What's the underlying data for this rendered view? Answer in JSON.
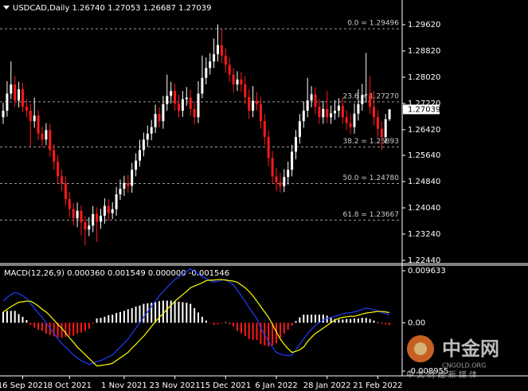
{
  "chart_data": [
    {
      "type": "candlestick",
      "title": "USDCAD,Daily  1.26740 1.27053 1.26687 1.27039",
      "categories": [
        null,
        null,
        null,
        null,
        null,
        "16 Sep 2021",
        null,
        null,
        null,
        null,
        null,
        null,
        null,
        null,
        null,
        null,
        null,
        "8 Oct 2021",
        null,
        null,
        null,
        null,
        null,
        null,
        null,
        null,
        null,
        null,
        null,
        null,
        null,
        "1 Nov 2021",
        null,
        null,
        null,
        null,
        null,
        null,
        null,
        null,
        null,
        null,
        null,
        null,
        "23 Nov 2021",
        null,
        null,
        null,
        null,
        null,
        null,
        null,
        null,
        null,
        null,
        null,
        null,
        "15 Dec 2021",
        null,
        null,
        null,
        null,
        null,
        null,
        null,
        null,
        null,
        null,
        null,
        null,
        "6 Jan 2022",
        null,
        null,
        null,
        null,
        null,
        null,
        null,
        null,
        null,
        null,
        null,
        null,
        "28 Jan 2022",
        null,
        null,
        null,
        null,
        null,
        null,
        null,
        null,
        null,
        null,
        null,
        null,
        "21 Feb 2022",
        null,
        null,
        null
      ],
      "open": [
        1.268,
        1.27,
        1.2752,
        1.278,
        1.2731,
        1.2765,
        1.2712,
        1.27,
        1.2668,
        1.2685,
        1.263,
        1.2612,
        1.2641,
        1.258,
        1.2545,
        1.25,
        1.2478,
        1.2431,
        1.24,
        1.2372,
        1.2395,
        1.236,
        1.2338,
        1.235,
        1.2385,
        1.2362,
        1.238,
        1.241,
        1.2388,
        1.24,
        1.2445,
        1.2462,
        1.248,
        1.2471,
        1.252,
        1.2548,
        1.258,
        1.2612,
        1.263,
        1.265,
        1.269,
        1.2668,
        1.272,
        1.2745,
        1.276,
        1.2722,
        1.27,
        1.2735,
        1.274,
        1.2705,
        1.268,
        1.2752,
        1.28,
        1.283,
        1.285,
        1.2872,
        1.29,
        1.2868,
        1.284,
        1.281,
        1.278,
        1.2795,
        1.278,
        1.2741,
        1.27,
        1.273,
        1.272,
        1.2668,
        1.262,
        1.2556,
        1.25,
        1.2482,
        1.247,
        1.2498,
        1.252,
        1.2575,
        1.262,
        1.2668,
        1.27,
        1.2731,
        1.275,
        1.2712,
        1.268,
        1.2705,
        1.268,
        1.2692,
        1.27,
        1.2715,
        1.268,
        1.2662,
        1.265,
        1.2691,
        1.272,
        1.2748,
        1.275,
        1.2712,
        1.268,
        1.2645,
        1.262,
        1.2674
      ],
      "high": [
        1.2724,
        1.279,
        1.285,
        1.2806,
        1.2788,
        1.2785,
        1.2736,
        1.2721,
        1.274,
        1.2702,
        1.2651,
        1.2662,
        1.266,
        1.2598,
        1.2566,
        1.2521,
        1.25,
        1.2452,
        1.2418,
        1.242,
        1.2411,
        1.238,
        1.2376,
        1.241,
        1.2405,
        1.2401,
        1.2433,
        1.243,
        1.2421,
        1.2468,
        1.249,
        1.2502,
        1.2505,
        1.2541,
        1.257,
        1.2611,
        1.2633,
        1.2655,
        1.2672,
        1.2718,
        1.2711,
        1.2745,
        1.281,
        1.2788,
        1.2782,
        1.2748,
        1.276,
        1.2772,
        1.2763,
        1.2728,
        1.279,
        1.2868,
        1.2862,
        1.2875,
        1.292,
        1.2963,
        1.295,
        1.289,
        1.2862,
        1.283,
        1.282,
        1.2818,
        1.2805,
        1.2765,
        1.2775,
        1.2756,
        1.2742,
        1.269,
        1.2641,
        1.2578,
        1.2525,
        1.251,
        1.2522,
        1.2545,
        1.2596,
        1.2641,
        1.269,
        1.2728,
        1.28,
        1.2775,
        1.2772,
        1.2735,
        1.273,
        1.276,
        1.2716,
        1.2732,
        1.2738,
        1.274,
        1.2702,
        1.269,
        1.2722,
        1.2765,
        1.2782,
        1.2876,
        1.2805,
        1.276,
        1.2702,
        1.2668,
        1.269,
        1.27053
      ],
      "low": [
        1.266,
        1.2682,
        1.2735,
        1.2712,
        1.271,
        1.2695,
        1.268,
        1.259,
        1.2648,
        1.261,
        1.259,
        1.2595,
        1.256,
        1.252,
        1.2478,
        1.2455,
        1.241,
        1.2375,
        1.235,
        1.2345,
        1.232,
        1.229,
        1.2318,
        1.233,
        1.23,
        1.234,
        1.2356,
        1.2365,
        1.237,
        1.238,
        1.2428,
        1.244,
        1.245,
        1.245,
        1.25,
        1.253,
        1.2561,
        1.259,
        1.261,
        1.2632,
        1.2648,
        1.2645,
        1.27,
        1.2722,
        1.27,
        1.268,
        1.2681,
        1.2715,
        1.2685,
        1.2658,
        1.2662,
        1.2738,
        1.278,
        1.281,
        1.283,
        1.285,
        1.2845,
        1.2815,
        1.2788,
        1.2755,
        1.276,
        1.2758,
        1.272,
        1.2675,
        1.268,
        1.27,
        1.2645,
        1.2595,
        1.253,
        1.2478,
        1.2455,
        1.245,
        1.2452,
        1.2475,
        1.25,
        1.2552,
        1.26,
        1.2648,
        1.268,
        1.271,
        1.269,
        1.266,
        1.266,
        1.2662,
        1.266,
        1.2672,
        1.268,
        1.266,
        1.264,
        1.2628,
        1.263,
        1.267,
        1.27,
        1.2725,
        1.269,
        1.2655,
        1.262,
        1.258,
        1.26,
        1.26687
      ],
      "close": [
        1.27,
        1.2752,
        1.278,
        1.2731,
        1.2765,
        1.2712,
        1.27,
        1.2668,
        1.2685,
        1.263,
        1.2612,
        1.2641,
        1.258,
        1.2545,
        1.25,
        1.2478,
        1.2431,
        1.24,
        1.2372,
        1.2395,
        1.236,
        1.2338,
        1.235,
        1.2385,
        1.2362,
        1.238,
        1.241,
        1.2388,
        1.24,
        1.2445,
        1.2462,
        1.248,
        1.2471,
        1.252,
        1.2548,
        1.258,
        1.2612,
        1.263,
        1.265,
        1.269,
        1.2668,
        1.272,
        1.2745,
        1.276,
        1.2722,
        1.27,
        1.2735,
        1.274,
        1.2705,
        1.268,
        1.2752,
        1.28,
        1.283,
        1.285,
        1.2872,
        1.29,
        1.2868,
        1.284,
        1.281,
        1.278,
        1.2795,
        1.278,
        1.2741,
        1.27,
        1.273,
        1.272,
        1.2668,
        1.262,
        1.2556,
        1.25,
        1.2482,
        1.247,
        1.2498,
        1.252,
        1.2575,
        1.262,
        1.2668,
        1.27,
        1.2731,
        1.275,
        1.2712,
        1.268,
        1.2705,
        1.268,
        1.2692,
        1.27,
        1.2715,
        1.268,
        1.2662,
        1.265,
        1.2691,
        1.272,
        1.2748,
        1.275,
        1.2712,
        1.268,
        1.2645,
        1.262,
        1.2674,
        1.27039
      ],
      "bull_color": "#ffffff",
      "bear_color": "#ff1a1a",
      "ylim": [
        1.22366,
        1.30372
      ],
      "yticks": [
        {
          "value": 1.2962,
          "label": "1.29620"
        },
        {
          "value": 1.2882,
          "label": "1.28820"
        },
        {
          "value": 1.2802,
          "label": "1.28020"
        },
        {
          "value": 1.2722,
          "label": "1.27220"
        },
        {
          "value": 1.2642,
          "label": "1.26420"
        },
        {
          "value": 1.2564,
          "label": "1.25640"
        },
        {
          "value": 1.2484,
          "label": "1.24840"
        },
        {
          "value": 1.2404,
          "label": "1.24040"
        },
        {
          "value": 1.2324,
          "label": "1.23240"
        },
        {
          "value": 1.2244,
          "label": "1.22440"
        }
      ],
      "current_price": 1.27039,
      "fib_levels": [
        {
          "label": "0.0 = 1.29496",
          "value": 1.29496
        },
        {
          "label": "23.6 = 1.27270",
          "value": 1.2727
        },
        {
          "label": "38.2 = 1.25893",
          "value": 1.25893
        },
        {
          "label": "50.0 = 1.24780",
          "value": 1.2478
        },
        {
          "label": "61.8 = 1.23667",
          "value": 1.23667
        }
      ]
    },
    {
      "type": "macd",
      "title": "MACD(12,26,9) 0.000360 0.001549 0.000000 -0.001546",
      "histogram": [
        0.002,
        0.0022,
        0.0022,
        0.0022,
        0.0016,
        0.0011,
        0.0005,
        -0.0004,
        -0.0009,
        -0.0013,
        -0.0015,
        -0.002,
        -0.0023,
        -0.0025,
        -0.0027,
        -0.0028,
        -0.0026,
        -0.0024,
        -0.0024,
        -0.002,
        -0.0018,
        -0.0015,
        -0.0011,
        -0.0002,
        0.0008,
        0.0009,
        0.0011,
        0.0014,
        0.0015,
        0.0018,
        0.002,
        0.0022,
        0.0025,
        0.0027,
        0.003,
        0.0032,
        0.0035,
        0.0036,
        0.0037,
        0.0038,
        0.004,
        0.0041,
        0.0041,
        0.0041,
        0.004,
        0.0039,
        0.0038,
        0.0037,
        0.0035,
        0.0027,
        0.0019,
        0.0011,
        0.0004,
        -0.0001,
        -0.0004,
        -0.0003,
        -0.0001,
        0.0001,
        -0.0003,
        -0.0007,
        -0.0015,
        -0.002,
        -0.0025,
        -0.003,
        -0.0032,
        -0.0032,
        -0.004,
        -0.0042,
        -0.0044,
        -0.0042,
        -0.0038,
        -0.0028,
        -0.002,
        -0.0013,
        -0.0005,
        0.0003,
        0.001,
        0.0015,
        0.0015,
        0.0015,
        0.0015,
        0.0015,
        0.0015,
        0.0013,
        0.001,
        0.0007,
        0.0006,
        0.0006,
        0.0007,
        0.0007,
        0.0008,
        0.0008,
        0.0009,
        0.0009,
        0.0007,
        0.0004,
        0.0001,
        -0.0002,
        -0.0003,
        -0.0004
      ],
      "main": [
        0.004,
        0.0047,
        0.0052,
        0.0056,
        0.0054,
        0.005,
        0.0045,
        0.0036,
        0.0027,
        0.0018,
        0.001,
        0.0,
        -0.001,
        -0.002,
        -0.003,
        -0.0038,
        -0.0045,
        -0.0052,
        -0.006,
        -0.0065,
        -0.007,
        -0.0074,
        -0.0077,
        -0.0075,
        -0.0072,
        -0.007,
        -0.0067,
        -0.0063,
        -0.006,
        -0.0052,
        -0.0045,
        -0.0038,
        -0.003,
        -0.002,
        -0.001,
        0.0,
        0.001,
        0.002,
        0.003,
        0.004,
        0.005,
        0.0058,
        0.0066,
        0.0073,
        0.008,
        0.0085,
        0.009,
        0.0095,
        0.01,
        0.0095,
        0.009,
        0.0085,
        0.0082,
        0.0078,
        0.0075,
        0.0077,
        0.0079,
        0.008,
        0.0075,
        0.007,
        0.006,
        0.005,
        0.004,
        0.0028,
        0.0018,
        0.0008,
        -0.001,
        -0.0022,
        -0.0034,
        -0.0045,
        -0.0055,
        -0.0058,
        -0.006,
        -0.0061,
        -0.006,
        -0.005,
        -0.004,
        -0.003,
        -0.002,
        -0.0012,
        -0.0005,
        0.0,
        0.0005,
        0.0008,
        0.001,
        0.0012,
        0.0014,
        0.0016,
        0.0018,
        0.0019,
        0.002,
        0.0022,
        0.0025,
        0.0027,
        0.0026,
        0.0024,
        0.0022,
        0.0019,
        0.0017,
        0.001549
      ],
      "signal": [
        0.002,
        0.0025,
        0.003,
        0.0034,
        0.0038,
        0.0039,
        0.004,
        0.004,
        0.0036,
        0.0031,
        0.0025,
        0.002,
        0.0013,
        0.0005,
        -0.0003,
        -0.001,
        -0.0019,
        -0.0028,
        -0.0036,
        -0.0045,
        -0.0052,
        -0.0059,
        -0.0066,
        -0.0073,
        -0.008,
        -0.0079,
        -0.0078,
        -0.0077,
        -0.0075,
        -0.007,
        -0.0065,
        -0.006,
        -0.0055,
        -0.0047,
        -0.004,
        -0.0032,
        -0.0025,
        -0.0016,
        -0.0007,
        0.0002,
        0.001,
        0.0017,
        0.0025,
        0.0032,
        0.004,
        0.0046,
        0.0052,
        0.0058,
        0.0065,
        0.0068,
        0.0071,
        0.0074,
        0.0078,
        0.0079,
        0.0079,
        0.008,
        0.008,
        0.0079,
        0.0078,
        0.0077,
        0.0075,
        0.007,
        0.0065,
        0.0058,
        0.005,
        0.004,
        0.003,
        0.002,
        0.001,
        -0.0003,
        -0.0017,
        -0.003,
        -0.004,
        -0.0048,
        -0.0055,
        -0.0053,
        -0.005,
        -0.0045,
        -0.0035,
        -0.0027,
        -0.002,
        -0.0015,
        -0.001,
        -0.0005,
        0.0,
        0.0005,
        0.0008,
        0.001,
        0.0011,
        0.0012,
        0.0012,
        0.0014,
        0.0016,
        0.0018,
        0.0019,
        0.002,
        0.0021,
        0.0021,
        0.002,
        0.0019
      ],
      "positive_color": "#ffffff",
      "negative_color": "#ff1a1a",
      "main_color": "#1f3dff",
      "signal_color": "#ffff00",
      "ylim": [
        -0.008955,
        0.009633
      ],
      "yticks": [
        0.009633,
        {
          "value": 0,
          "label": "0.00"
        },
        -0.008955
      ]
    }
  ],
  "watermark": {
    "brand": "中金网",
    "site": "CNGOLD.ORG",
    "tagline": "中 文 财 经 新 媒 体"
  }
}
